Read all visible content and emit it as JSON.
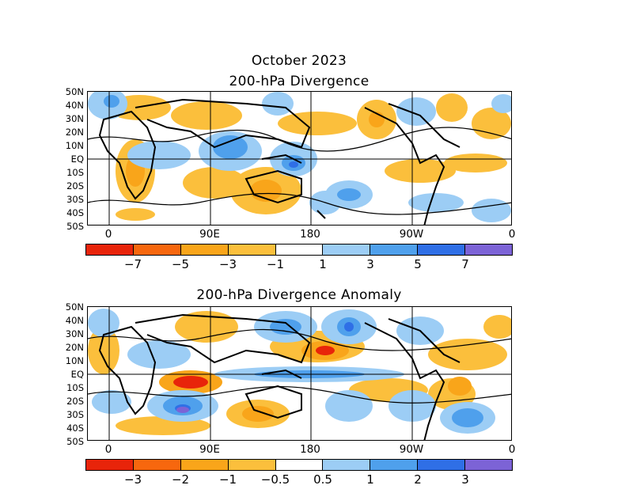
{
  "main_title": "October 2023",
  "panels": [
    {
      "title": "200-hPa Divergence",
      "lat_labels": [
        "50N",
        "40N",
        "30N",
        "20N",
        "10N",
        "EQ",
        "10S",
        "20S",
        "30S",
        "40S",
        "50S"
      ],
      "lon_labels": [
        "0",
        "90E",
        "180",
        "90W",
        "0"
      ],
      "colorbar_labels": [
        "−7",
        "−5",
        "−3",
        "−1",
        "1",
        "3",
        "5",
        "7"
      ],
      "colorbar_colors": [
        "#e8240a",
        "#f7670e",
        "#f9a51a",
        "#fbbf3c",
        "#ffffff",
        "#9ccdf5",
        "#4fa0ec",
        "#2f6fe6",
        "#7c63d6"
      ]
    },
    {
      "title": "200-hPa Divergence Anomaly",
      "lat_labels": [
        "50N",
        "40N",
        "30N",
        "20N",
        "10N",
        "EQ",
        "10S",
        "20S",
        "30S",
        "40S",
        "50S"
      ],
      "lon_labels": [
        "0",
        "90E",
        "180",
        "90W",
        "0"
      ],
      "colorbar_labels": [
        "−3",
        "−2",
        "−1",
        "−0.5",
        "0.5",
        "1",
        "2",
        "3"
      ],
      "colorbar_colors": [
        "#e8240a",
        "#f7670e",
        "#f9a51a",
        "#fbbf3c",
        "#ffffff",
        "#9ccdf5",
        "#4fa0ec",
        "#2f6fe6",
        "#7c63d6"
      ]
    }
  ]
}
